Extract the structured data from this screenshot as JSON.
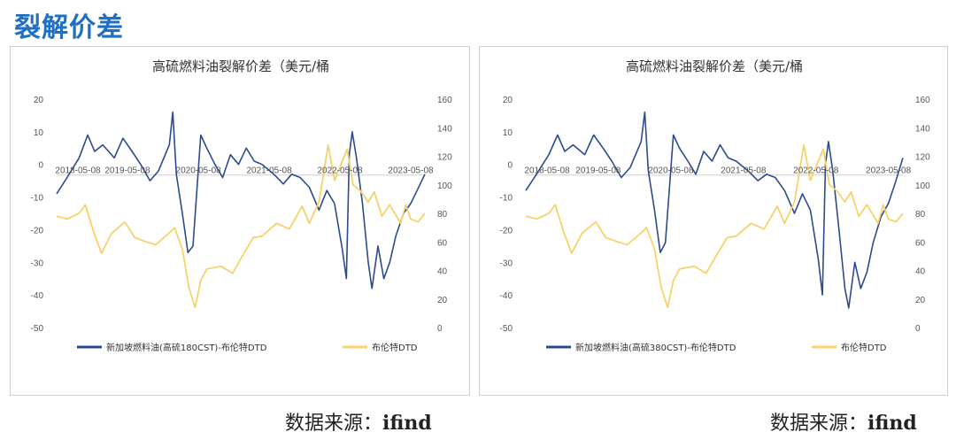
{
  "page": {
    "heading": "裂解价差",
    "accent_color": "#1f6fc4"
  },
  "sources": [
    {
      "label": "数据来源：",
      "name": "ifind"
    },
    {
      "label": "数据来源：",
      "name": "ifind"
    }
  ],
  "chart_data": [
    {
      "type": "line",
      "title": "高硫燃料油裂解价差（美元/桶",
      "x_tick_labels": [
        "2018-05-08",
        "2019-05-08",
        "2020-05-08",
        "2021-05-08",
        "2022-05-08",
        "2023-05-08"
      ],
      "x_range": [
        "2018-05-08",
        "2023-07-20"
      ],
      "y_left": {
        "range": [
          -50,
          20
        ],
        "ticks": [
          "20",
          "10",
          "0",
          "-10",
          "-20",
          "-30",
          "-40",
          "-50"
        ]
      },
      "y_right": {
        "range": [
          0,
          160
        ],
        "ticks": [
          "160",
          "140",
          "120",
          "100",
          "80",
          "60",
          "40",
          "20",
          "0"
        ]
      },
      "grid": false,
      "legend_position": "bottom",
      "series": [
        {
          "name": "新加坡燃料油(高硫180CST)-布伦特DTD",
          "axis": "left",
          "color": "#2b4a8f",
          "points": [
            [
              "2018-05-08",
              -9
            ],
            [
              "2018-07-01",
              -4
            ],
            [
              "2018-09-01",
              2
            ],
            [
              "2018-10-15",
              9
            ],
            [
              "2018-11-20",
              4
            ],
            [
              "2019-01-01",
              6
            ],
            [
              "2019-03-01",
              2
            ],
            [
              "2019-04-15",
              8
            ],
            [
              "2019-06-01",
              4
            ],
            [
              "2019-07-15",
              0
            ],
            [
              "2019-09-01",
              -5
            ],
            [
              "2019-10-15",
              -2
            ],
            [
              "2019-12-10",
              6
            ],
            [
              "2019-12-28",
              16
            ],
            [
              "2020-01-15",
              -3
            ],
            [
              "2020-02-15",
              -15
            ],
            [
              "2020-03-15",
              -27
            ],
            [
              "2020-04-10",
              -25
            ],
            [
              "2020-05-20",
              9
            ],
            [
              "2020-06-20",
              5
            ],
            [
              "2020-08-01",
              0
            ],
            [
              "2020-09-10",
              -4
            ],
            [
              "2020-10-20",
              3
            ],
            [
              "2020-12-01",
              0
            ],
            [
              "2021-01-10",
              5
            ],
            [
              "2021-02-20",
              1
            ],
            [
              "2021-04-01",
              0
            ],
            [
              "2021-06-01",
              -3
            ],
            [
              "2021-07-20",
              -6
            ],
            [
              "2021-09-01",
              -3
            ],
            [
              "2021-10-15",
              -4
            ],
            [
              "2021-12-01",
              -7
            ],
            [
              "2022-01-20",
              -14
            ],
            [
              "2022-03-01",
              -8
            ],
            [
              "2022-04-10",
              -12
            ],
            [
              "2022-05-20",
              -26
            ],
            [
              "2022-06-10",
              -35
            ],
            [
              "2022-06-25",
              3
            ],
            [
              "2022-07-10",
              10
            ],
            [
              "2022-08-01",
              2
            ],
            [
              "2022-09-01",
              -12
            ],
            [
              "2022-10-01",
              -30
            ],
            [
              "2022-10-20",
              -38
            ],
            [
              "2022-11-20",
              -25
            ],
            [
              "2022-12-20",
              -35
            ],
            [
              "2023-01-20",
              -30
            ],
            [
              "2023-02-20",
              -22
            ],
            [
              "2023-04-01",
              -15
            ],
            [
              "2023-05-08",
              -12
            ],
            [
              "2023-06-10",
              -8
            ],
            [
              "2023-07-20",
              -3
            ]
          ]
        },
        {
          "name": "布伦特DTD",
          "axis": "right",
          "color": "#f7d26b",
          "points": [
            [
              "2018-05-08",
              78
            ],
            [
              "2018-07-01",
              76
            ],
            [
              "2018-09-01",
              80
            ],
            [
              "2018-10-03",
              86
            ],
            [
              "2018-11-15",
              67
            ],
            [
              "2018-12-25",
              52
            ],
            [
              "2019-02-15",
              66
            ],
            [
              "2019-04-25",
              74
            ],
            [
              "2019-06-15",
              63
            ],
            [
              "2019-08-15",
              60
            ],
            [
              "2019-10-01",
              58
            ],
            [
              "2019-12-15",
              67
            ],
            [
              "2020-01-06",
              70
            ],
            [
              "2020-02-15",
              55
            ],
            [
              "2020-03-20",
              28
            ],
            [
              "2020-04-21",
              14
            ],
            [
              "2020-05-20",
              33
            ],
            [
              "2020-06-20",
              41
            ],
            [
              "2020-09-01",
              43
            ],
            [
              "2020-11-01",
              38
            ],
            [
              "2020-12-20",
              50
            ],
            [
              "2021-02-15",
              63
            ],
            [
              "2021-04-01",
              64
            ],
            [
              "2021-06-15",
              73
            ],
            [
              "2021-08-20",
              69
            ],
            [
              "2021-10-25",
              85
            ],
            [
              "2021-12-01",
              73
            ],
            [
              "2022-01-20",
              88
            ],
            [
              "2022-03-08",
              128
            ],
            [
              "2022-04-10",
              103
            ],
            [
              "2022-06-14",
              125
            ],
            [
              "2022-07-15",
              100
            ],
            [
              "2022-08-20",
              96
            ],
            [
              "2022-10-01",
              88
            ],
            [
              "2022-11-01",
              95
            ],
            [
              "2022-12-10",
              78
            ],
            [
              "2023-01-20",
              86
            ],
            [
              "2023-03-17",
              73
            ],
            [
              "2023-04-12",
              86
            ],
            [
              "2023-05-08",
              76
            ],
            [
              "2023-06-15",
              74
            ],
            [
              "2023-07-20",
              80
            ]
          ]
        }
      ]
    },
    {
      "type": "line",
      "title": "高硫燃料油裂解价差（美元/桶",
      "x_tick_labels": [
        "2018-05-08",
        "2019-05-08",
        "2020-05-08",
        "2021-05-08",
        "2022-05-08",
        "2023-05-08"
      ],
      "x_range": [
        "2018-05-08",
        "2023-07-20"
      ],
      "y_left": {
        "range": [
          -50,
          20
        ],
        "ticks": [
          "20",
          "10",
          "0",
          "-10",
          "-20",
          "-30",
          "-40",
          "-50"
        ]
      },
      "y_right": {
        "range": [
          0,
          160
        ],
        "ticks": [
          "160",
          "140",
          "120",
          "100",
          "80",
          "60",
          "40",
          "20",
          "0"
        ]
      },
      "grid": false,
      "legend_position": "bottom",
      "series": [
        {
          "name": "新加坡燃料油(高硫380CST)-布伦特DTD",
          "axis": "left",
          "color": "#2b4a8f",
          "points": [
            [
              "2018-05-08",
              -8
            ],
            [
              "2018-07-01",
              -3
            ],
            [
              "2018-09-01",
              3
            ],
            [
              "2018-10-15",
              9
            ],
            [
              "2018-11-20",
              4
            ],
            [
              "2019-01-01",
              6
            ],
            [
              "2019-03-01",
              3
            ],
            [
              "2019-04-15",
              9
            ],
            [
              "2019-06-01",
              5
            ],
            [
              "2019-07-15",
              1
            ],
            [
              "2019-09-01",
              -4
            ],
            [
              "2019-10-15",
              -1
            ],
            [
              "2019-12-10",
              7
            ],
            [
              "2019-12-28",
              16
            ],
            [
              "2020-01-15",
              -2
            ],
            [
              "2020-02-15",
              -14
            ],
            [
              "2020-03-15",
              -27
            ],
            [
              "2020-04-10",
              -24
            ],
            [
              "2020-05-20",
              9
            ],
            [
              "2020-06-20",
              5
            ],
            [
              "2020-08-01",
              1
            ],
            [
              "2020-09-10",
              -3
            ],
            [
              "2020-10-20",
              4
            ],
            [
              "2020-12-01",
              1
            ],
            [
              "2021-01-10",
              6
            ],
            [
              "2021-02-20",
              2
            ],
            [
              "2021-04-01",
              1
            ],
            [
              "2021-06-01",
              -2
            ],
            [
              "2021-07-20",
              -5
            ],
            [
              "2021-09-01",
              -3
            ],
            [
              "2021-10-15",
              -4
            ],
            [
              "2021-12-01",
              -8
            ],
            [
              "2022-01-20",
              -15
            ],
            [
              "2022-03-01",
              -9
            ],
            [
              "2022-04-10",
              -14
            ],
            [
              "2022-05-20",
              -29
            ],
            [
              "2022-06-10",
              -40
            ],
            [
              "2022-06-25",
              0
            ],
            [
              "2022-07-10",
              7
            ],
            [
              "2022-08-01",
              -2
            ],
            [
              "2022-09-01",
              -20
            ],
            [
              "2022-10-01",
              -38
            ],
            [
              "2022-10-20",
              -44
            ],
            [
              "2022-11-20",
              -30
            ],
            [
              "2022-12-20",
              -38
            ],
            [
              "2023-01-20",
              -33
            ],
            [
              "2023-02-20",
              -24
            ],
            [
              "2023-04-01",
              -16
            ],
            [
              "2023-05-08",
              -12
            ],
            [
              "2023-06-10",
              -6
            ],
            [
              "2023-07-20",
              2
            ]
          ]
        },
        {
          "name": "布伦特DTD",
          "axis": "right",
          "color": "#f7d26b",
          "points": [
            [
              "2018-05-08",
              78
            ],
            [
              "2018-07-01",
              76
            ],
            [
              "2018-09-01",
              80
            ],
            [
              "2018-10-03",
              86
            ],
            [
              "2018-11-15",
              67
            ],
            [
              "2018-12-25",
              52
            ],
            [
              "2019-02-15",
              66
            ],
            [
              "2019-04-25",
              74
            ],
            [
              "2019-06-15",
              63
            ],
            [
              "2019-08-15",
              60
            ],
            [
              "2019-10-01",
              58
            ],
            [
              "2019-12-15",
              67
            ],
            [
              "2020-01-06",
              70
            ],
            [
              "2020-02-15",
              55
            ],
            [
              "2020-03-20",
              28
            ],
            [
              "2020-04-21",
              14
            ],
            [
              "2020-05-20",
              33
            ],
            [
              "2020-06-20",
              41
            ],
            [
              "2020-09-01",
              43
            ],
            [
              "2020-11-01",
              38
            ],
            [
              "2020-12-20",
              50
            ],
            [
              "2021-02-15",
              63
            ],
            [
              "2021-04-01",
              64
            ],
            [
              "2021-06-15",
              73
            ],
            [
              "2021-08-20",
              69
            ],
            [
              "2021-10-25",
              85
            ],
            [
              "2021-12-01",
              73
            ],
            [
              "2022-01-20",
              88
            ],
            [
              "2022-03-08",
              128
            ],
            [
              "2022-04-10",
              103
            ],
            [
              "2022-06-14",
              125
            ],
            [
              "2022-07-15",
              100
            ],
            [
              "2022-08-20",
              96
            ],
            [
              "2022-10-01",
              88
            ],
            [
              "2022-11-01",
              95
            ],
            [
              "2022-12-10",
              78
            ],
            [
              "2023-01-20",
              86
            ],
            [
              "2023-03-17",
              73
            ],
            [
              "2023-04-12",
              86
            ],
            [
              "2023-05-08",
              76
            ],
            [
              "2023-06-15",
              74
            ],
            [
              "2023-07-20",
              80
            ]
          ]
        }
      ]
    }
  ]
}
